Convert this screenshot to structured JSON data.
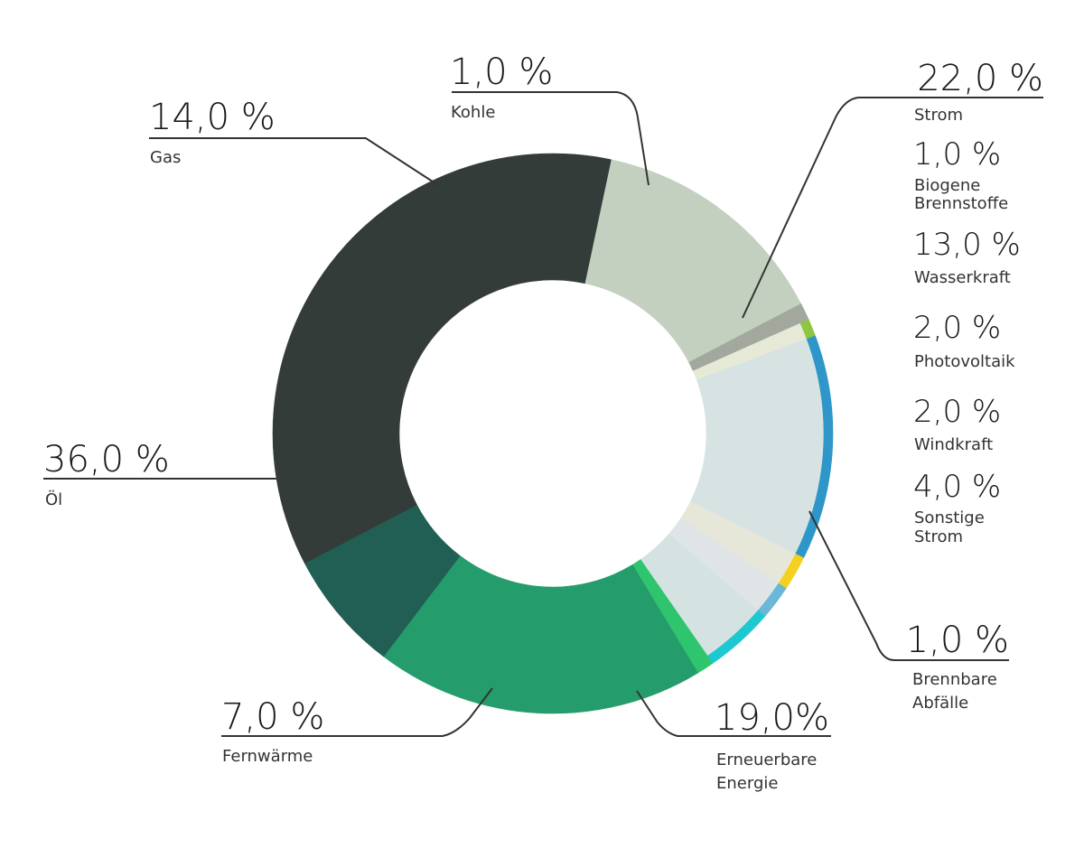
{
  "chart_data": {
    "type": "pie",
    "title": "",
    "slices": [
      {
        "key": "gas",
        "label": "Gas",
        "value": 14.0,
        "display": "14,0 %",
        "color": "#c4d0bf"
      },
      {
        "key": "kohle",
        "label": "Kohle",
        "value": 1.0,
        "display": "1,0 %",
        "color": "#a2a89e"
      },
      {
        "key": "strom",
        "label": "Strom",
        "value": 22.0,
        "display": "22,0 %",
        "color": "#d8e3e3",
        "outer_color": "#2e96c8"
      },
      {
        "key": "brennbare",
        "label": "Brennbare Abfälle",
        "label_lines": [
          "Brennbare",
          "Abfälle"
        ],
        "value": 1.0,
        "display": "1,0 %",
        "color": "#2fc46e"
      },
      {
        "key": "erneuerbare",
        "label": "Erneuerbare Energie",
        "label_lines": [
          "Erneuerbare",
          "Energie"
        ],
        "value": 19.0,
        "display": "19,0%",
        "color": "#259c6c"
      },
      {
        "key": "fernwaerme",
        "label": "Fernwärme",
        "value": 7.0,
        "display": "7,0 %",
        "color": "#215f54"
      },
      {
        "key": "oel",
        "label": "Öl",
        "value": 36.0,
        "display": "36,0 %",
        "color": "#343c39"
      }
    ],
    "strom_breakdown": [
      {
        "key": "biogene",
        "label": "Biogene Brennstoffe",
        "label_lines": [
          "Biogene",
          "Brennstoffe"
        ],
        "value": 1.0,
        "display": "1,0 %",
        "color": "#e6e9d6",
        "outer_color": "#8dc63f"
      },
      {
        "key": "wasserkraft",
        "label": "Wasserkraft",
        "value": 13.0,
        "display": "13,0 %",
        "color": "#d7e2e3",
        "outer_color": "#2e96c8"
      },
      {
        "key": "photovoltaik",
        "label": "Photovoltaik",
        "value": 2.0,
        "display": "2,0 %",
        "color": "#e6e7d8",
        "outer_color": "#f4d11f"
      },
      {
        "key": "windkraft",
        "label": "Windkraft",
        "value": 2.0,
        "display": "2,0 %",
        "color": "#dfe5e7",
        "outer_color": "#6ab7d7"
      },
      {
        "key": "sonstige",
        "label": "Sonstige Strom",
        "label_lines": [
          "Sonstige",
          "Strom"
        ],
        "value": 4.0,
        "display": "4,0 %",
        "color": "#d4e3e2",
        "outer_color": "#1ec8d0"
      }
    ]
  }
}
